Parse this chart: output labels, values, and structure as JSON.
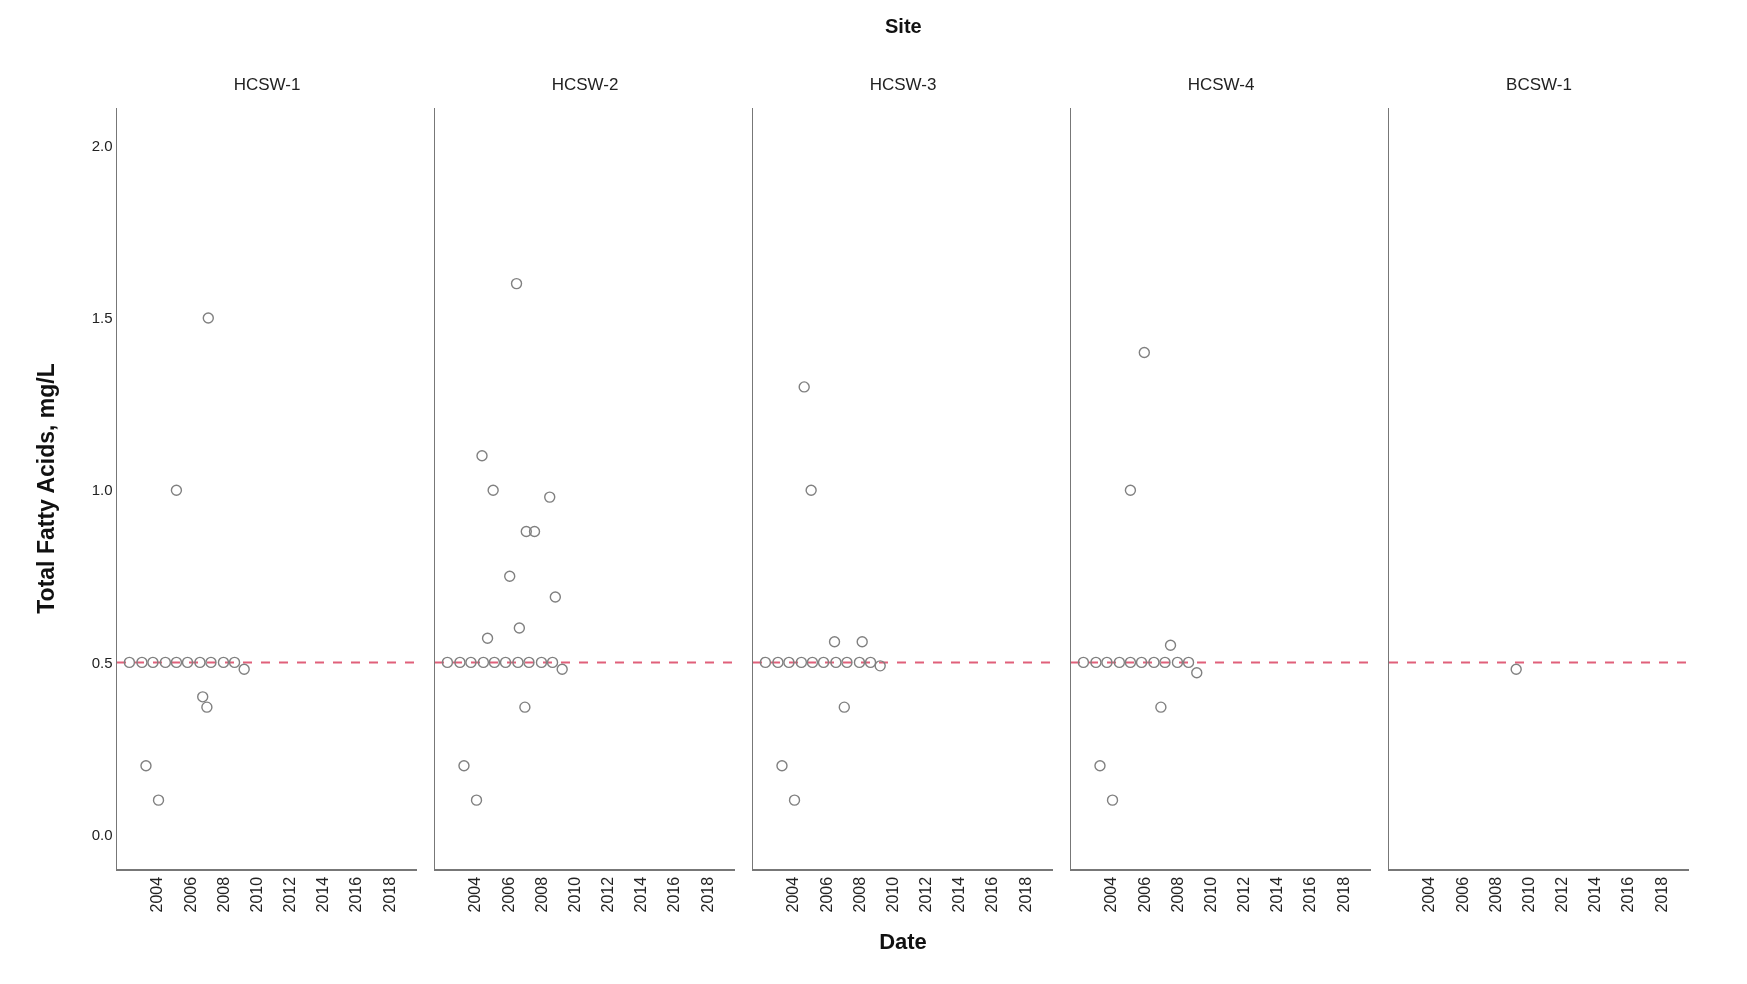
{
  "chart_data": [
    {
      "type": "scatter",
      "title": "HCSW-1",
      "ylabel": "Total Fatty Acids, mg/L",
      "marker": "circle",
      "grid": false,
      "xlim": [
        "2001-08",
        "2019-09"
      ],
      "ylim": [
        -0.1,
        2.11
      ],
      "xticks": [
        {
          "value": "2004-01-01",
          "label": "2004"
        },
        {
          "value": "2006-01-01",
          "label": "2006"
        },
        {
          "value": "2008-01-01",
          "label": "2008"
        },
        {
          "value": "2010-01-01",
          "label": "2010"
        },
        {
          "value": "2012-01-01",
          "label": "2012"
        },
        {
          "value": "2014-01-01",
          "label": "2014"
        },
        {
          "value": "2016-01-01",
          "label": "2016"
        },
        {
          "value": "2018-01-01",
          "label": "2018"
        }
      ],
      "yticks": [
        {
          "value": 0,
          "label": "0.0"
        },
        0.5,
        {
          "value": 1,
          "label": "1.0"
        },
        1.5,
        {
          "value": 2,
          "label": "2.0"
        }
      ],
      "ref_lines": [
        {
          "axis": "y",
          "value": 0.5,
          "color": "#e0607a",
          "line_style": "dashed"
        }
      ],
      "series": [
        {
          "color": "#808080",
          "x": [
            "2002-05",
            "2003-02",
            "2003-10",
            "2004-07",
            "2005-03",
            "2005-11",
            "2006-08",
            "2007-04",
            "2008-01",
            "2008-09",
            "2007-02",
            "2005-03",
            "2003-05",
            "2004-02",
            "2006-10",
            "2007-01",
            "2009-04"
          ],
          "values": [
            0.5,
            0.5,
            0.5,
            0.5,
            0.5,
            0.5,
            0.5,
            0.5,
            0.5,
            0.5,
            1.5,
            1.0,
            0.2,
            0.1,
            0.4,
            0.37,
            0.48
          ]
        }
      ]
    },
    {
      "type": "scatter",
      "title": "HCSW-2",
      "marker": "circle",
      "grid": false,
      "tick_labels": "x",
      "xlim": [
        "2001-08",
        "2019-09"
      ],
      "ylim": [
        -0.1,
        2.11
      ],
      "xticks": [
        {
          "value": "2004-01-01",
          "label": "2004"
        },
        {
          "value": "2006-01-01",
          "label": "2006"
        },
        {
          "value": "2008-01-01",
          "label": "2008"
        },
        {
          "value": "2010-01-01",
          "label": "2010"
        },
        {
          "value": "2012-01-01",
          "label": "2012"
        },
        {
          "value": "2014-01-01",
          "label": "2014"
        },
        {
          "value": "2016-01-01",
          "label": "2016"
        },
        {
          "value": "2018-01-01",
          "label": "2018"
        }
      ],
      "ref_lines": [
        {
          "axis": "y",
          "value": 0.5,
          "color": "#e0607a",
          "line_style": "dashed"
        }
      ],
      "series": [
        {
          "color": "#808080",
          "x": [
            "2002-05",
            "2003-02",
            "2003-10",
            "2004-07",
            "2005-03",
            "2005-11",
            "2006-08",
            "2007-04",
            "2008-01",
            "2008-09",
            "2006-07",
            "2004-06",
            "2005-02",
            "2008-07",
            "2007-02",
            "2007-08",
            "2006-02",
            "2008-11",
            "2006-09",
            "2004-10",
            "2007-01",
            "2003-05",
            "2004-02",
            "2009-04"
          ],
          "values": [
            0.5,
            0.5,
            0.5,
            0.5,
            0.5,
            0.5,
            0.5,
            0.5,
            0.5,
            0.5,
            1.6,
            1.1,
            1.0,
            0.98,
            0.88,
            0.88,
            0.75,
            0.69,
            0.6,
            0.57,
            0.37,
            0.2,
            0.1,
            0.48
          ]
        }
      ]
    },
    {
      "type": "scatter",
      "title": "HCSW-3",
      "xlabel": "Date",
      "annotations": [
        "Site"
      ],
      "marker": "circle",
      "grid": false,
      "tick_labels": "x",
      "xlim": [
        "2001-08",
        "2019-09"
      ],
      "ylim": [
        -0.1,
        2.11
      ],
      "xticks": [
        {
          "value": "2004-01-01",
          "label": "2004"
        },
        {
          "value": "2006-01-01",
          "label": "2006"
        },
        {
          "value": "2008-01-01",
          "label": "2008"
        },
        {
          "value": "2010-01-01",
          "label": "2010"
        },
        {
          "value": "2012-01-01",
          "label": "2012"
        },
        {
          "value": "2014-01-01",
          "label": "2014"
        },
        {
          "value": "2016-01-01",
          "label": "2016"
        },
        {
          "value": "2018-01-01",
          "label": "2018"
        }
      ],
      "ref_lines": [
        {
          "axis": "y",
          "value": 0.5,
          "color": "#e0607a",
          "line_style": "dashed"
        }
      ],
      "series": [
        {
          "color": "#808080",
          "x": [
            "2002-05",
            "2003-02",
            "2003-10",
            "2004-07",
            "2005-03",
            "2005-11",
            "2006-08",
            "2007-04",
            "2008-01",
            "2008-09",
            "2004-09",
            "2005-02",
            "2003-05",
            "2004-02",
            "2007-02",
            "2006-07",
            "2008-03",
            "2009-04"
          ],
          "values": [
            0.5,
            0.5,
            0.5,
            0.5,
            0.5,
            0.5,
            0.5,
            0.5,
            0.5,
            0.5,
            1.3,
            1.0,
            0.2,
            0.1,
            0.37,
            0.56,
            0.56,
            0.49
          ]
        }
      ]
    },
    {
      "type": "scatter",
      "title": "HCSW-4",
      "marker": "circle",
      "grid": false,
      "tick_labels": "x",
      "xlim": [
        "2001-08",
        "2019-09"
      ],
      "ylim": [
        -0.1,
        2.11
      ],
      "xticks": [
        {
          "value": "2004-01-01",
          "label": "2004"
        },
        {
          "value": "2006-01-01",
          "label": "2006"
        },
        {
          "value": "2008-01-01",
          "label": "2008"
        },
        {
          "value": "2010-01-01",
          "label": "2010"
        },
        {
          "value": "2012-01-01",
          "label": "2012"
        },
        {
          "value": "2014-01-01",
          "label": "2014"
        },
        {
          "value": "2016-01-01",
          "label": "2016"
        },
        {
          "value": "2018-01-01",
          "label": "2018"
        }
      ],
      "ref_lines": [
        {
          "axis": "y",
          "value": 0.5,
          "color": "#e0607a",
          "line_style": "dashed"
        }
      ],
      "series": [
        {
          "color": "#808080",
          "x": [
            "2002-05",
            "2003-02",
            "2003-10",
            "2004-07",
            "2005-03",
            "2005-11",
            "2006-08",
            "2007-04",
            "2008-01",
            "2008-09",
            "2006-01",
            "2005-03",
            "2003-05",
            "2004-02",
            "2007-01",
            "2007-08",
            "2009-03"
          ],
          "values": [
            0.5,
            0.5,
            0.5,
            0.5,
            0.5,
            0.5,
            0.5,
            0.5,
            0.5,
            0.5,
            1.4,
            1.0,
            0.2,
            0.1,
            0.37,
            0.55,
            0.47
          ]
        }
      ]
    },
    {
      "type": "scatter",
      "title": "BCSW-1",
      "marker": "circle",
      "grid": false,
      "tick_labels": "x",
      "xlim": [
        "2001-08",
        "2019-09"
      ],
      "ylim": [
        -0.1,
        2.11
      ],
      "xticks": [
        {
          "value": "2004-01-01",
          "label": "2004"
        },
        {
          "value": "2006-01-01",
          "label": "2006"
        },
        {
          "value": "2008-01-01",
          "label": "2008"
        },
        {
          "value": "2010-01-01",
          "label": "2010"
        },
        {
          "value": "2012-01-01",
          "label": "2012"
        },
        {
          "value": "2014-01-01",
          "label": "2014"
        },
        {
          "value": "2016-01-01",
          "label": "2016"
        },
        {
          "value": "2018-01-01",
          "label": "2018"
        }
      ],
      "ref_lines": [
        {
          "axis": "y",
          "value": 0.5,
          "color": "#e0607a",
          "line_style": "dashed"
        }
      ],
      "series": [
        {
          "color": "#808080",
          "x": [
            "2009-04"
          ],
          "values": [
            0.48
          ]
        }
      ]
    }
  ]
}
